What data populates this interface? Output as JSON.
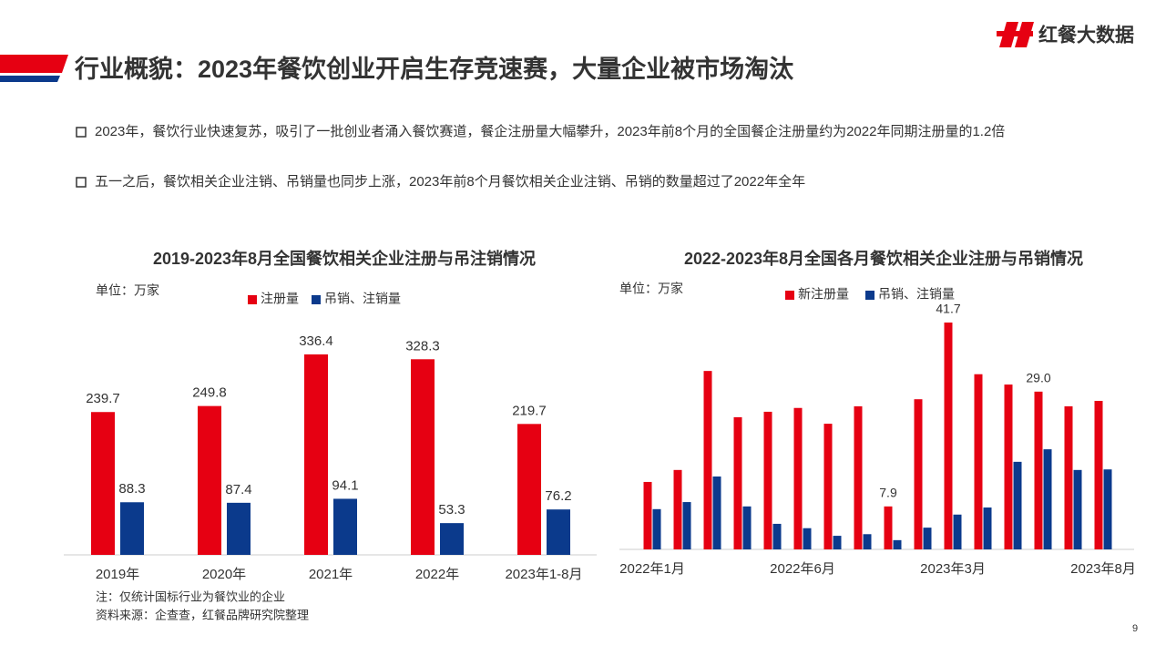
{
  "title": "行业概貌：2023年餐饮创业开启生存竞速赛，大量企业被市场淘汰",
  "logo": "红餐大数据",
  "bullets": [
    "2023年，餐饮行业快速复苏，吸引了一批创业者涌入餐饮赛道，餐企注册量大幅攀升，2023年前8个月的全国餐企注册量约为2022年同期注册量的1.2倍",
    "五一之后，餐饮相关企业注销、吊销量也同步上涨，2023年前8个月餐饮相关企业注销、吊销的数量超过了2022年全年"
  ],
  "notes": [
    "注：仅统计国标行业为餐饮业的企业",
    "资料来源：企查查，红餐品牌研究院整理"
  ],
  "page_number": "9",
  "chart_data": [
    {
      "type": "bar",
      "title": "2019-2023年8月全国餐饮相关企业注册与吊注销情况",
      "unit": "单位：万家",
      "categories": [
        "2019年",
        "2020年",
        "2021年",
        "2022年",
        "2023年1-8月"
      ],
      "series": [
        {
          "name": "注册量",
          "color": "#e60012",
          "values": [
            239.7,
            249.8,
            336.4,
            328.3,
            219.7
          ]
        },
        {
          "name": "吊销、注销量",
          "color": "#0b3a8c",
          "values": [
            88.3,
            87.4,
            94.1,
            53.3,
            76.2
          ]
        }
      ]
    },
    {
      "type": "bar",
      "title": "2022-2023年8月全国各月餐饮相关企业注册与吊销情况",
      "unit": "单位：万家",
      "categories": [
        "2022年1月",
        null,
        null,
        null,
        null,
        "2022年6月",
        null,
        null,
        null,
        null,
        "2023年3月",
        null,
        null,
        null,
        null,
        "2023年8月"
      ],
      "series": [
        {
          "name": "新注册量",
          "color": "#e60012",
          "values": [
            12.4,
            14.6,
            32.8,
            24.3,
            25.3,
            26.0,
            23.1,
            26.3,
            7.9,
            27.6,
            41.7,
            32.2,
            30.3,
            29.0,
            26.3,
            27.3
          ],
          "value_labels": [
            null,
            null,
            null,
            null,
            null,
            null,
            null,
            null,
            "7.9",
            null,
            "41.7",
            null,
            null,
            "29.0",
            null,
            null
          ]
        },
        {
          "name": "吊销、注销量",
          "color": "#0b3a8c",
          "values": [
            7.4,
            8.7,
            13.4,
            7.9,
            4.7,
            3.9,
            2.5,
            2.8,
            1.7,
            4.0,
            6.4,
            7.7,
            16.1,
            18.4,
            14.6,
            14.7
          ]
        }
      ]
    }
  ]
}
